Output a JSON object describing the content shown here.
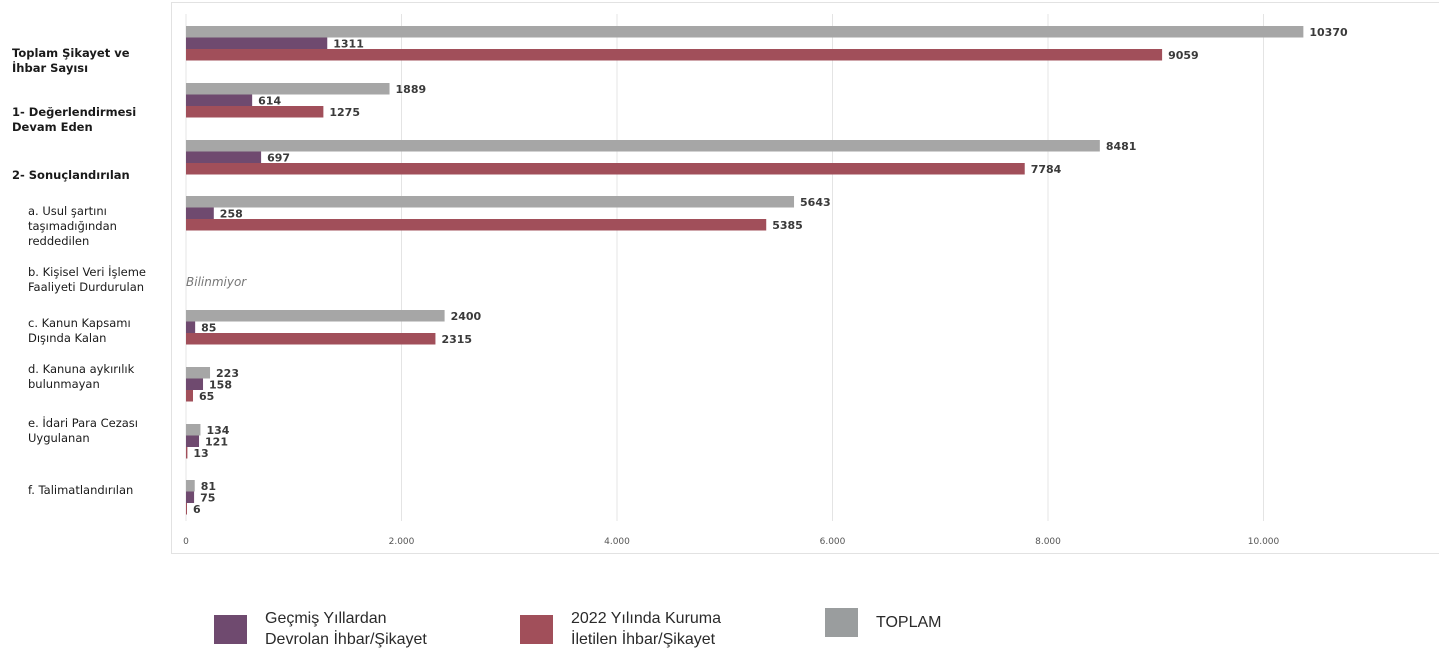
{
  "chart_data": {
    "type": "bar",
    "orientation": "horizontal",
    "categories": [
      "Toplam Şikayet ve\nİhbar Sayısı",
      "1- Değerlendirmesi\nDevam Eden",
      "2- Sonuçlandırılan",
      "a. Usul şartını\ntaşımadığından\nreddedilen",
      "b. Kişisel Veri İşleme\nFaaliyeti Durdurulan",
      "c. Kanun Kapsamı\nDışında Kalan",
      "d. Kanuna aykırılık\nbulunmayan",
      "e. İdari Para Cezası\nUygulanan",
      "f. Talimatlandırılan"
    ],
    "series": [
      {
        "name": "TOPLAM",
        "color": "#a6a6a6",
        "values": [
          10370,
          1889,
          8481,
          5643,
          null,
          2400,
          223,
          134,
          81
        ]
      },
      {
        "name": "Geçmiş Yıllardan\nDevrolan İhbar/Şikayet",
        "color": "#6f4a6f",
        "values": [
          1311,
          614,
          697,
          258,
          null,
          85,
          158,
          121,
          75
        ]
      },
      {
        "name": "2022 Yılında Kuruma\nİletilen İhbar/Şikayet",
        "color": "#a14f5a",
        "values": [
          9059,
          1275,
          7784,
          5385,
          null,
          2315,
          65,
          13,
          6
        ]
      }
    ],
    "annotations": [
      {
        "category_index": 4,
        "text": "Bilinmiyor"
      }
    ],
    "xlim": [
      0,
      11000
    ],
    "x_ticks": [
      0,
      2000,
      4000,
      6000,
      8000,
      10000
    ],
    "x_tick_labels": [
      "0",
      "2.000",
      "4.000",
      "6.000",
      "8.000",
      "10.000"
    ],
    "grid": true,
    "legend_position": "bottom"
  },
  "legend": [
    {
      "label": "Geçmiş Yıllardan\nDevrolan İhbar/Şikayet",
      "color": "#6f4a6f"
    },
    {
      "label": "2022 Yılında Kuruma\nİletilen İhbar/Şikayet",
      "color": "#a14f5a"
    },
    {
      "label": "TOPLAM",
      "color": "#9a9d9e"
    }
  ]
}
